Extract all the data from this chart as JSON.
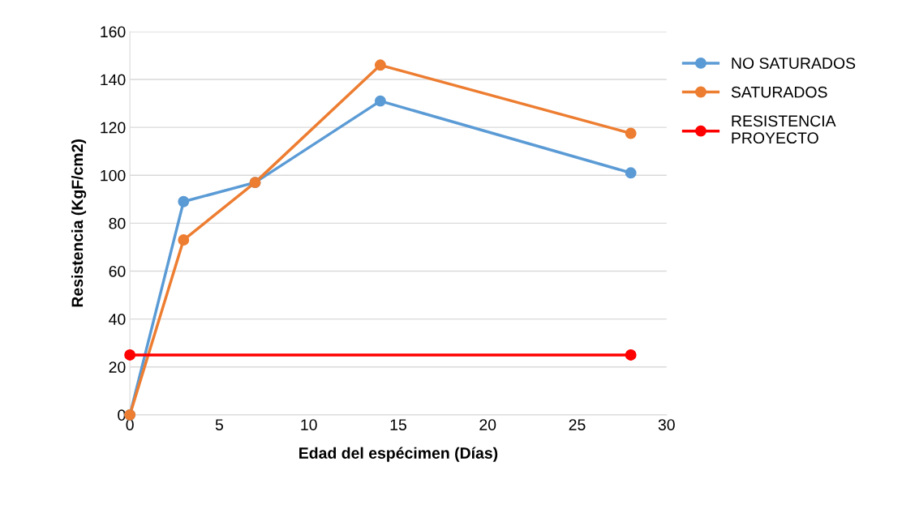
{
  "chart_data": {
    "type": "line",
    "xlabel": "Edad del espécimen (Días)",
    "ylabel": "Resistencia (KgF/cm2)",
    "xlim": [
      0,
      30
    ],
    "xticks": [
      0,
      5,
      10,
      15,
      20,
      25,
      30
    ],
    "ylim": [
      0,
      160
    ],
    "yticks": [
      0,
      20,
      40,
      60,
      80,
      100,
      120,
      140,
      160
    ],
    "grid": "y",
    "legend": "right",
    "marker": "circle",
    "line_style": "solid",
    "series": [
      {
        "name": "NO SATURADOS",
        "color": "#5b9bd5",
        "x": [
          0,
          3,
          7,
          14,
          28
        ],
        "values": [
          0,
          89,
          97,
          131,
          101
        ]
      },
      {
        "name": "SATURADOS",
        "color": "#ed7d31",
        "x": [
          0,
          3,
          7,
          14,
          28
        ],
        "values": [
          0,
          73,
          97,
          146,
          117.5
        ]
      },
      {
        "name": "RESISTENCIA\nPROYECTO",
        "color": "#ff0000",
        "x": [
          0,
          28
        ],
        "values": [
          25,
          25
        ]
      }
    ]
  }
}
